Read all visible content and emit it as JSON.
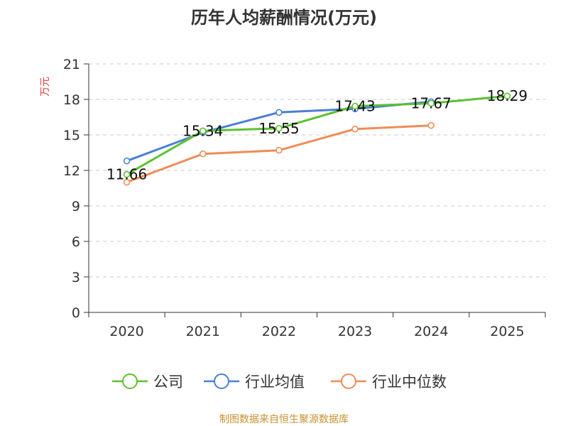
{
  "chart_data": {
    "type": "line",
    "title": "历年人均薪酬情况(万元)",
    "ylabel": "万元",
    "xlabel": "",
    "ylim": [
      0,
      21
    ],
    "yticks": [
      0,
      3,
      6,
      9,
      12,
      15,
      18,
      21
    ],
    "categories": [
      "2020",
      "2021",
      "2022",
      "2023",
      "2024",
      "2025"
    ],
    "series": [
      {
        "name": "公司",
        "color": "#5cc12f",
        "values": [
          11.66,
          15.34,
          15.55,
          17.43,
          17.67,
          18.29
        ],
        "labels": [
          "11.66",
          "15.34",
          "15.55",
          "17.43",
          "17.67",
          "18.29"
        ]
      },
      {
        "name": "行业均值",
        "color": "#4a7fd8",
        "values": [
          12.8,
          15.2,
          16.9,
          17.2,
          17.8,
          null
        ]
      },
      {
        "name": "行业中位数",
        "color": "#f08c55",
        "values": [
          11.0,
          13.4,
          13.7,
          15.5,
          15.8,
          null
        ]
      }
    ],
    "grid": true,
    "legend": "bottom"
  },
  "source": "制图数据来自恒生聚源数据库"
}
